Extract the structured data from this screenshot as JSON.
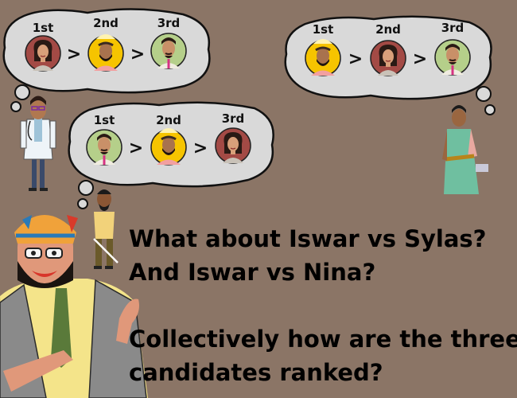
{
  "ballots": [
    {
      "labels": [
        "1st",
        "2nd",
        "3rd"
      ],
      "order": [
        "nina",
        "iswar",
        "sylas"
      ],
      "separator": ">"
    },
    {
      "labels": [
        "1st",
        "2nd",
        "3rd"
      ],
      "order": [
        "iswar",
        "nina",
        "sylas"
      ],
      "separator": ">"
    },
    {
      "labels": [
        "1st",
        "2nd",
        "3rd"
      ],
      "order": [
        "sylas",
        "iswar",
        "nina"
      ],
      "separator": ">"
    }
  ],
  "candidate_colors": {
    "nina": "#a34a45",
    "iswar": "#f6c400",
    "sylas": "#b5cf8a"
  },
  "questions": {
    "line1": "What about Iswar vs Sylas?",
    "line2": "And  Iswar vs Nina?",
    "line3": "Collectively how are the three",
    "line4": "candidates ranked?"
  }
}
